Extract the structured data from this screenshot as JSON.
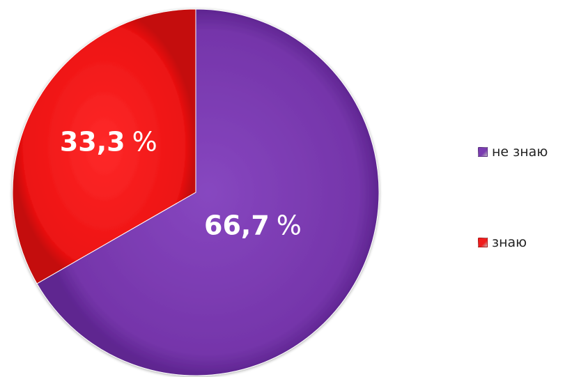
{
  "chart_data": {
    "type": "pie",
    "title": "",
    "slices": [
      {
        "name": "не знаю",
        "value": 66.7,
        "value_label": "66,7",
        "unit_label": "%",
        "color": "#7A3CB0"
      },
      {
        "name": "знаю",
        "value": 33.3,
        "value_label": "33,3",
        "unit_label": "%",
        "color": "#F01C1C"
      }
    ],
    "legend_placement": "right",
    "data_labels": true
  }
}
